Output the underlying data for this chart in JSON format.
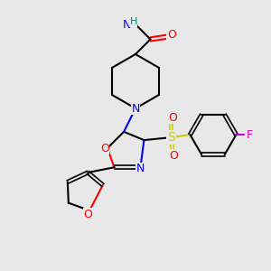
{
  "background_color": "#e8e8e8",
  "atom_colors": {
    "C": "#000000",
    "N": "#0000ff",
    "O": "#ff0000",
    "S": "#cccc00",
    "F": "#cc00cc",
    "H": "#008080"
  },
  "figsize": [
    3.0,
    3.0
  ],
  "dpi": 100
}
